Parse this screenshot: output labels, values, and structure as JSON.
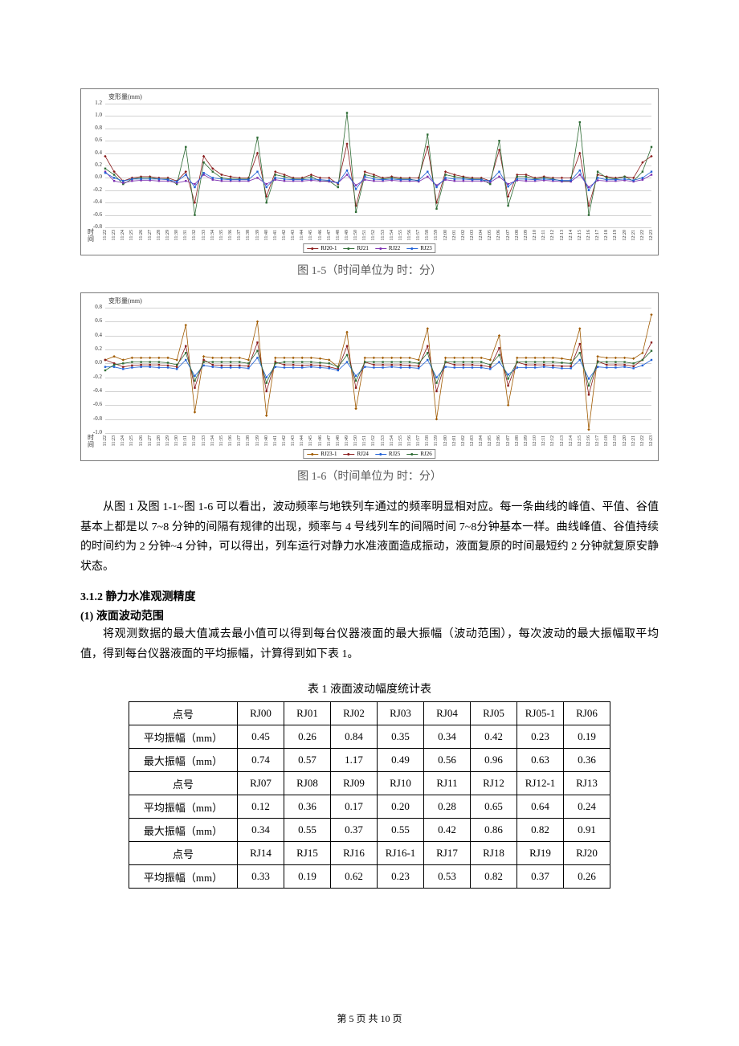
{
  "chart5": {
    "type": "line",
    "ylabel": "变形量(mm)",
    "xlabel": "时\n间",
    "ylim": [
      -0.8,
      1.2
    ],
    "yticks": [
      -0.8,
      -0.6,
      -0.4,
      -0.2,
      0.0,
      0.2,
      0.4,
      0.6,
      0.8,
      1.0,
      1.2
    ],
    "x_categories": [
      "11:22",
      "11:23",
      "11:24",
      "11:25",
      "11:26",
      "11:27",
      "11:28",
      "11:29",
      "11:30",
      "11:31",
      "11:32",
      "11:33",
      "11:34",
      "11:35",
      "11:36",
      "11:37",
      "11:38",
      "11:39",
      "11:40",
      "11:41",
      "11:42",
      "11:43",
      "11:44",
      "11:45",
      "11:46",
      "11:47",
      "11:48",
      "11:49",
      "11:50",
      "11:51",
      "11:52",
      "11:53",
      "11:54",
      "11:55",
      "11:56",
      "11:57",
      "11:58",
      "11:59",
      "12:00",
      "12:01",
      "12:02",
      "12:03",
      "12:04",
      "12:05",
      "12:06",
      "12:07",
      "12:08",
      "12:09",
      "12:10",
      "12:11",
      "12:12",
      "12:13",
      "12:14",
      "12:15",
      "12:16",
      "12:17",
      "12:18",
      "12:19",
      "12:20",
      "12:21",
      "12:22",
      "12:23"
    ],
    "series": [
      {
        "name": "RJ20-1",
        "color": "#8a1c1c",
        "marker": "diamond",
        "values": [
          0.35,
          0.1,
          -0.05,
          0.0,
          0.02,
          0.02,
          0.0,
          0.0,
          -0.05,
          0.1,
          -0.4,
          0.35,
          0.15,
          0.05,
          0.02,
          0.0,
          0.0,
          0.4,
          -0.3,
          0.1,
          0.05,
          0.0,
          0.0,
          0.05,
          0.0,
          0.0,
          -0.1,
          0.55,
          -0.45,
          0.1,
          0.05,
          0.0,
          0.02,
          0.0,
          0.0,
          0.0,
          0.5,
          -0.4,
          0.1,
          0.05,
          0.02,
          0.0,
          0.0,
          -0.05,
          0.45,
          -0.3,
          0.05,
          0.05,
          0.0,
          0.02,
          0.0,
          0.0,
          0.0,
          0.4,
          -0.45,
          0.05,
          0.02,
          0.0,
          0.02,
          0.0,
          0.25,
          0.35
        ]
      },
      {
        "name": "RJ21",
        "color": "#2d6b34",
        "marker": "square",
        "values": [
          0.15,
          0.05,
          -0.1,
          -0.02,
          0.0,
          0.0,
          -0.02,
          -0.02,
          -0.1,
          0.5,
          -0.6,
          0.25,
          0.1,
          0.0,
          -0.02,
          -0.02,
          -0.02,
          0.65,
          -0.4,
          0.05,
          0.02,
          -0.02,
          -0.02,
          0.02,
          -0.05,
          -0.05,
          -0.15,
          1.05,
          -0.55,
          0.05,
          0.02,
          -0.02,
          0.0,
          -0.02,
          -0.02,
          -0.05,
          0.7,
          -0.5,
          0.05,
          0.02,
          0.0,
          -0.02,
          -0.02,
          -0.1,
          0.6,
          -0.45,
          0.02,
          0.02,
          -0.02,
          0.0,
          -0.02,
          -0.05,
          -0.05,
          0.9,
          -0.6,
          0.1,
          0.0,
          -0.02,
          0.02,
          -0.05,
          0.1,
          0.5
        ]
      },
      {
        "name": "RJ22",
        "color": "#7b2fb0",
        "marker": "triangle",
        "values": [
          0.1,
          -0.05,
          -0.08,
          -0.05,
          -0.04,
          -0.04,
          -0.05,
          -0.05,
          -0.08,
          -0.05,
          -0.1,
          0.05,
          -0.03,
          -0.05,
          -0.05,
          -0.05,
          -0.05,
          0.0,
          -0.1,
          -0.03,
          -0.05,
          -0.05,
          -0.05,
          -0.04,
          -0.05,
          -0.06,
          -0.08,
          0.05,
          -0.12,
          -0.03,
          -0.05,
          -0.05,
          -0.04,
          -0.05,
          -0.05,
          -0.06,
          0.02,
          -0.12,
          -0.03,
          -0.05,
          -0.05,
          -0.05,
          -0.05,
          -0.07,
          0.02,
          -0.1,
          -0.04,
          -0.05,
          -0.05,
          -0.04,
          -0.05,
          -0.06,
          -0.06,
          0.05,
          -0.15,
          -0.04,
          -0.05,
          -0.05,
          -0.04,
          -0.06,
          -0.03,
          0.05
        ]
      },
      {
        "name": "RJ23",
        "color": "#2060d6",
        "marker": "cross",
        "values": [
          0.08,
          0.0,
          -0.05,
          -0.02,
          -0.02,
          -0.02,
          -0.02,
          -0.03,
          -0.06,
          0.05,
          -0.15,
          0.08,
          0.0,
          -0.02,
          -0.03,
          -0.03,
          -0.03,
          0.1,
          -0.15,
          0.0,
          -0.02,
          -0.03,
          -0.03,
          -0.02,
          -0.03,
          -0.04,
          -0.08,
          0.12,
          -0.18,
          0.02,
          -0.02,
          -0.03,
          -0.02,
          -0.03,
          -0.03,
          -0.04,
          0.1,
          -0.15,
          0.0,
          -0.02,
          -0.02,
          -0.03,
          -0.03,
          -0.05,
          0.1,
          -0.14,
          -0.02,
          -0.02,
          -0.03,
          -0.02,
          -0.03,
          -0.04,
          -0.04,
          0.12,
          -0.2,
          0.0,
          -0.03,
          -0.03,
          -0.02,
          -0.04,
          0.0,
          0.1
        ]
      }
    ],
    "background_color": "#ffffff",
    "grid_color": "#d2d2d2",
    "caption": "图 1-5（时间单位为  时：分）"
  },
  "chart6": {
    "type": "line",
    "ylabel": "变形量(mm)",
    "xlabel": "时\n间",
    "ylim": [
      -1.0,
      0.8
    ],
    "yticks": [
      -1.0,
      -0.8,
      -0.6,
      -0.4,
      -0.2,
      0.0,
      0.2,
      0.4,
      0.6,
      0.8
    ],
    "x_categories": [
      "11:22",
      "11:23",
      "11:24",
      "11:25",
      "11:26",
      "11:27",
      "11:28",
      "11:29",
      "11:30",
      "11:31",
      "11:32",
      "11:33",
      "11:34",
      "11:35",
      "11:36",
      "11:37",
      "11:38",
      "11:39",
      "11:40",
      "11:41",
      "11:42",
      "11:43",
      "11:44",
      "11:45",
      "11:46",
      "11:47",
      "11:48",
      "11:49",
      "11:50",
      "11:51",
      "11:52",
      "11:53",
      "11:54",
      "11:55",
      "11:56",
      "11:57",
      "11:58",
      "11:59",
      "12:00",
      "12:01",
      "12:02",
      "12:03",
      "12:04",
      "12:05",
      "12:06",
      "12:07",
      "12:08",
      "12:09",
      "12:10",
      "12:11",
      "12:12",
      "12:13",
      "12:14",
      "12:15",
      "12:16",
      "12:17",
      "12:18",
      "12:19",
      "12:20",
      "12:21",
      "12:22",
      "12:23"
    ],
    "series": [
      {
        "name": "RJ23-1",
        "color": "#a05a00",
        "marker": "diamond",
        "values": [
          0.05,
          0.1,
          0.05,
          0.08,
          0.08,
          0.08,
          0.08,
          0.08,
          0.05,
          0.55,
          -0.7,
          0.1,
          0.08,
          0.08,
          0.08,
          0.08,
          0.05,
          0.6,
          -0.75,
          0.08,
          0.08,
          0.08,
          0.08,
          0.08,
          0.07,
          0.05,
          -0.05,
          0.45,
          -0.65,
          0.08,
          0.08,
          0.08,
          0.08,
          0.08,
          0.08,
          0.05,
          0.5,
          -0.8,
          0.08,
          0.08,
          0.08,
          0.08,
          0.08,
          0.05,
          0.4,
          -0.6,
          0.08,
          0.08,
          0.08,
          0.08,
          0.08,
          0.07,
          0.05,
          0.5,
          -0.95,
          0.1,
          0.08,
          0.08,
          0.08,
          0.07,
          0.15,
          0.7
        ]
      },
      {
        "name": "RJ24",
        "color": "#8a1c1c",
        "marker": "square",
        "values": [
          0.05,
          0.0,
          -0.05,
          -0.03,
          -0.02,
          -0.02,
          -0.02,
          -0.03,
          -0.05,
          0.25,
          -0.35,
          0.05,
          -0.02,
          -0.03,
          -0.03,
          -0.03,
          -0.04,
          0.3,
          -0.4,
          0.02,
          -0.02,
          -0.02,
          -0.03,
          -0.02,
          -0.03,
          -0.05,
          -0.08,
          0.25,
          -0.35,
          0.02,
          -0.02,
          -0.02,
          -0.02,
          -0.02,
          -0.03,
          -0.04,
          0.25,
          -0.4,
          0.02,
          -0.02,
          -0.02,
          -0.02,
          -0.03,
          -0.05,
          0.22,
          -0.32,
          0.02,
          -0.02,
          -0.02,
          -0.02,
          -0.03,
          -0.04,
          -0.04,
          0.28,
          -0.45,
          0.03,
          -0.02,
          -0.02,
          -0.02,
          -0.04,
          0.05,
          0.3
        ]
      },
      {
        "name": "RJ25",
        "color": "#2060d6",
        "marker": "triangle",
        "values": [
          -0.05,
          -0.05,
          -0.08,
          -0.06,
          -0.05,
          -0.05,
          -0.06,
          -0.06,
          -0.08,
          0.05,
          -0.18,
          -0.03,
          -0.05,
          -0.06,
          -0.06,
          -0.06,
          -0.07,
          0.08,
          -0.2,
          -0.05,
          -0.06,
          -0.06,
          -0.06,
          -0.05,
          -0.06,
          -0.07,
          -0.1,
          0.02,
          -0.18,
          -0.05,
          -0.06,
          -0.06,
          -0.05,
          -0.06,
          -0.06,
          -0.07,
          0.05,
          -0.2,
          -0.05,
          -0.06,
          -0.06,
          -0.06,
          -0.06,
          -0.08,
          0.02,
          -0.16,
          -0.06,
          -0.06,
          -0.06,
          -0.05,
          -0.06,
          -0.07,
          -0.07,
          0.05,
          -0.22,
          -0.05,
          -0.06,
          -0.06,
          -0.05,
          -0.07,
          -0.03,
          0.05
        ]
      },
      {
        "name": "RJ26",
        "color": "#2d6b34",
        "marker": "cross",
        "values": [
          -0.1,
          -0.02,
          0.0,
          0.02,
          0.02,
          0.02,
          0.02,
          0.01,
          -0.02,
          0.15,
          -0.25,
          0.02,
          0.02,
          0.02,
          0.02,
          0.02,
          0.0,
          0.18,
          -0.28,
          0.0,
          0.02,
          0.02,
          0.02,
          0.02,
          0.01,
          0.0,
          -0.05,
          0.12,
          -0.25,
          0.02,
          0.02,
          0.02,
          0.02,
          0.02,
          0.02,
          0.0,
          0.15,
          -0.28,
          0.02,
          0.02,
          0.02,
          0.02,
          0.02,
          -0.02,
          0.12,
          -0.22,
          0.02,
          0.02,
          0.02,
          0.02,
          0.02,
          0.01,
          0.0,
          0.15,
          -0.32,
          0.02,
          0.02,
          0.02,
          0.02,
          0.0,
          0.05,
          0.18
        ]
      }
    ],
    "background_color": "#ffffff",
    "grid_color": "#d2d2d2",
    "caption": "图 1-6（时间单位为  时：分）"
  },
  "paragraph1": "从图 1 及图 1-1~图 1-6 可以看出，波动频率与地铁列车通过的频率明显相对应。每一条曲线的峰值、平值、谷值基本上都是以 7~8 分钟的间隔有规律的出现，频率与 4 号线列车的间隔时间 7~8分钟基本一样。曲线峰值、谷值持续的时间约为 2 分钟~4 分钟，可以得出，列车运行对静力水准液面造成振动，液面复原的时间最短约 2 分钟就复原安静状态。",
  "section_3_1_2_title": "3.1.2   静力水准观测精度",
  "sub_title_1": "(1) 液面波动范围",
  "paragraph2": "将观测数据的最大值减去最小值可以得到每台仪器液面的最大振幅（波动范围），每次波动的最大振幅取平均值，得到每台仪器液面的平均振幅，计算得到如下表 1。",
  "table": {
    "caption": "表 1 液面波动幅度统计表",
    "rows": [
      {
        "label": "点号",
        "cells": [
          "RJ00",
          "RJ01",
          "RJ02",
          "RJ03",
          "RJ04",
          "RJ05",
          "RJ05-1",
          "RJ06"
        ]
      },
      {
        "label": "平均振幅（mm）",
        "cells": [
          "0.45",
          "0.26",
          "0.84",
          "0.35",
          "0.34",
          "0.42",
          "0.23",
          "0.19"
        ]
      },
      {
        "label": "最大振幅（mm）",
        "cells": [
          "0.74",
          "0.57",
          "1.17",
          "0.49",
          "0.56",
          "0.96",
          "0.63",
          "0.36"
        ]
      },
      {
        "label": "点号",
        "cells": [
          "RJ07",
          "RJ08",
          "RJ09",
          "RJ10",
          "RJ11",
          "RJ12",
          "RJ12-1",
          "RJ13"
        ]
      },
      {
        "label": "平均振幅（mm）",
        "cells": [
          "0.12",
          "0.36",
          "0.17",
          "0.20",
          "0.28",
          "0.65",
          "0.64",
          "0.24"
        ]
      },
      {
        "label": "最大振幅（mm）",
        "cells": [
          "0.34",
          "0.55",
          "0.37",
          "0.55",
          "0.42",
          "0.86",
          "0.82",
          "0.91"
        ]
      },
      {
        "label": "点号",
        "cells": [
          "RJ14",
          "RJ15",
          "RJ16",
          "RJ16-1",
          "RJ17",
          "RJ18",
          "RJ19",
          "RJ20"
        ]
      },
      {
        "label": "平均振幅（mm）",
        "cells": [
          "0.33",
          "0.19",
          "0.62",
          "0.23",
          "0.53",
          "0.82",
          "0.37",
          "0.26"
        ]
      }
    ]
  },
  "footer": "第 5 页 共 10 页"
}
